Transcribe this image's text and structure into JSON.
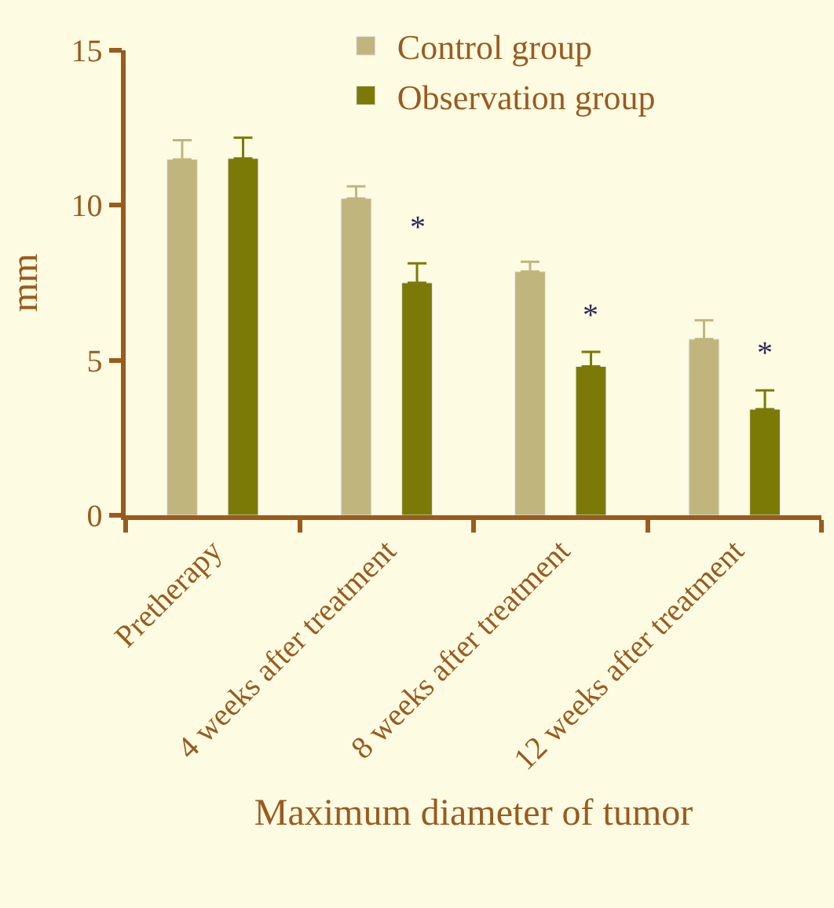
{
  "chart_data": {
    "type": "bar",
    "xlabel": "Maximum diameter of tumor",
    "ylabel": "mm",
    "categories": [
      "Pretherapy",
      "4 weeks after treatment",
      "8 weeks after treatment",
      "12 weeks after treatment"
    ],
    "series": [
      {
        "name": "Control group",
        "color": "#c1b57e",
        "values": [
          11.48,
          10.22,
          7.86,
          5.68
        ],
        "errors": [
          [
            11.48,
            12.1
          ],
          [
            10.22,
            10.61
          ],
          [
            7.86,
            8.18
          ],
          [
            5.68,
            6.29
          ]
        ]
      },
      {
        "name": "Observation group",
        "color": "#7b7a06",
        "values": [
          11.51,
          7.5,
          4.8,
          3.42
        ],
        "errors": [
          [
            11.51,
            12.18
          ],
          [
            7.5,
            8.13
          ],
          [
            4.8,
            5.27
          ],
          [
            3.42,
            4.03
          ]
        ]
      }
    ],
    "annotations": [
      "*",
      "*",
      "*"
    ],
    "ylim": [
      0,
      15
    ],
    "yticks": [
      0,
      5,
      10,
      15
    ],
    "grid": false,
    "legend": "top"
  }
}
